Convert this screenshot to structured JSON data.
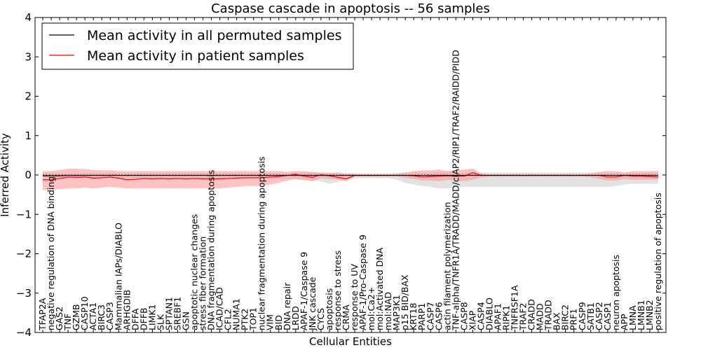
{
  "chart_data": {
    "type": "line",
    "title": "Caspase cascade in apoptosis -- 56 samples",
    "xlabel": "Cellular Entities",
    "ylabel": "Inferred Activity",
    "ylim": [
      -4,
      4
    ],
    "yticks": [
      "−4",
      "−3",
      "−2",
      "−1",
      "0",
      "1",
      "2",
      "3",
      "4"
    ],
    "grid": false,
    "legend_position": "top-left",
    "categories": [
      "TFAP2A",
      "negative regulation of DNA binding",
      "GAS2",
      "TNF",
      "GZMB",
      "CASP10",
      "ACTA1",
      "BIRC3",
      "CASP3",
      "Mammalian IAPs/DIABLO",
      "ARHGDIB",
      "DFFA",
      "DFFB",
      "LIMK1",
      "SLK",
      "SPTAN1",
      "SREBF1",
      "GSN",
      "apoptotic nuclear changes",
      "stress fiber formation",
      "DNA fragmentation during apoptosis",
      "ICAD/CAD",
      "CFL2",
      "NUMA1",
      "PTK2",
      "TOP1",
      "nuclear fragmentation during apoptosis",
      "VIM",
      "BID",
      "DNA repair",
      "LRDD",
      "APAF-1/Caspase 9",
      "JNK cascade",
      "CYCS",
      "apoptosis",
      "response to stress",
      "CRMA",
      "response to UV",
      "APAF-1/Pro-Caspase 9",
      "mol:Ca2+",
      "mol:Activated DNA",
      "mol:NAD",
      "MAP3K1",
      "p15 BID/BAX",
      "KRT18",
      "PARP1",
      "CASP7",
      "CASP6",
      "actin filament polymerization",
      "TNF-alpha/TNFR1A/TRADD/MADD/cIAP2/RIP1/TRAF2/RAIDD/PIDD",
      "CASP8",
      "XIAP",
      "CASP4",
      "DIABLO",
      "APAF1",
      "RIPK1",
      "TNFRSF1A",
      "TRAF2",
      "CRADD",
      "MADD",
      "TRADD",
      "BAX",
      "BIRC2",
      "PRF1",
      "CASP9",
      "SATB1",
      "CASP2",
      "CASP1",
      "neuron apoptosis",
      "APP",
      "LMNA",
      "LMNB1",
      "LMNB2",
      "positive regulation of apoptosis"
    ],
    "series": [
      {
        "name": "Mean activity in all permuted samples",
        "color": "#000000",
        "values": [
          -0.02,
          -0.02,
          -0.02,
          -0.01,
          -0.01,
          -0.01,
          -0.01,
          -0.01,
          -0.01,
          -0.01,
          -0.01,
          -0.01,
          -0.01,
          -0.01,
          -0.01,
          -0.01,
          -0.01,
          -0.01,
          -0.01,
          -0.01,
          -0.01,
          -0.01,
          -0.01,
          -0.01,
          -0.01,
          -0.01,
          -0.01,
          -0.01,
          -0.01,
          -0.01,
          -0.01,
          -0.01,
          -0.01,
          -0.01,
          -0.01,
          -0.01,
          -0.01,
          -0.01,
          -0.01,
          -0.01,
          -0.01,
          -0.01,
          -0.01,
          -0.01,
          -0.01,
          -0.01,
          -0.01,
          -0.01,
          -0.01,
          -0.01,
          -0.01,
          -0.01,
          -0.01,
          -0.01,
          -0.01,
          -0.01,
          -0.01,
          -0.01,
          -0.01,
          -0.01,
          -0.01,
          -0.01,
          -0.01,
          -0.01,
          -0.01,
          -0.01,
          -0.01,
          -0.01,
          -0.01,
          -0.01,
          -0.01,
          -0.01,
          -0.01,
          -0.01
        ],
        "band_upper": [
          0.05,
          0.05,
          0.05,
          0.05,
          0.05,
          0.05,
          0.05,
          0.05,
          0.05,
          0.05,
          0.05,
          0.05,
          0.05,
          0.05,
          0.05,
          0.05,
          0.05,
          0.05,
          0.05,
          0.05,
          0.05,
          0.05,
          0.05,
          0.05,
          0.05,
          0.05,
          0.05,
          0.05,
          0.05,
          0.05,
          0.06,
          0.06,
          0.06,
          0.06,
          0.06,
          0.06,
          0.04,
          0.04,
          0.04,
          0.04,
          0.04,
          0.04,
          0.05,
          0.06,
          0.06,
          0.06,
          0.06,
          0.08,
          0.08,
          0.08,
          0.06,
          0.06,
          0.06,
          0.06,
          0.06,
          0.06,
          0.06,
          0.06,
          0.06,
          0.06,
          0.06,
          0.06,
          0.06,
          0.06,
          0.06,
          0.06,
          0.06,
          0.06,
          0.06,
          0.06,
          0.06,
          0.06,
          0.06,
          0.06
        ],
        "band_lower": [
          -0.08,
          -0.08,
          -0.08,
          -0.08,
          -0.08,
          -0.08,
          -0.08,
          -0.08,
          -0.08,
          -0.08,
          -0.08,
          -0.08,
          -0.08,
          -0.08,
          -0.08,
          -0.08,
          -0.08,
          -0.08,
          -0.08,
          -0.08,
          -0.08,
          -0.08,
          -0.08,
          -0.08,
          -0.08,
          -0.08,
          -0.08,
          -0.08,
          -0.08,
          -0.1,
          -0.12,
          -0.14,
          -0.14,
          -0.16,
          -0.22,
          -0.18,
          -0.1,
          -0.08,
          -0.08,
          -0.08,
          -0.08,
          -0.08,
          -0.12,
          -0.2,
          -0.24,
          -0.28,
          -0.3,
          -0.34,
          -0.34,
          -0.32,
          -0.3,
          -0.3,
          -0.3,
          -0.3,
          -0.3,
          -0.3,
          -0.3,
          -0.3,
          -0.3,
          -0.3,
          -0.3,
          -0.3,
          -0.3,
          -0.3,
          -0.3,
          -0.3,
          -0.3,
          -0.3,
          -0.28,
          -0.24,
          -0.22,
          -0.22,
          -0.22,
          -0.22
        ]
      },
      {
        "name": "Mean activity in patient samples",
        "color": "#ff0000",
        "values": [
          -0.12,
          -0.12,
          -0.09,
          -0.05,
          -0.06,
          -0.05,
          -0.08,
          -0.07,
          -0.05,
          -0.08,
          -0.12,
          -0.11,
          -0.09,
          -0.1,
          -0.09,
          -0.1,
          -0.09,
          -0.1,
          -0.09,
          -0.1,
          -0.1,
          -0.1,
          -0.09,
          -0.08,
          -0.07,
          -0.07,
          -0.07,
          -0.05,
          -0.04,
          -0.01,
          0.02,
          -0.03,
          -0.06,
          0.01,
          -0.02,
          -0.06,
          -0.1,
          -0.01,
          -0.01,
          -0.01,
          -0.01,
          -0.01,
          -0.01,
          -0.01,
          -0.02,
          -0.05,
          -0.04,
          -0.03,
          -0.02,
          -0.03,
          -0.03,
          0.06,
          -0.01,
          -0.01,
          -0.01,
          -0.01,
          -0.01,
          -0.01,
          -0.01,
          -0.01,
          -0.01,
          -0.01,
          -0.01,
          -0.01,
          -0.01,
          -0.01,
          -0.01,
          -0.05,
          -0.05,
          -0.01,
          -0.03,
          -0.03,
          -0.04,
          -0.05
        ],
        "band_upper": [
          0.1,
          0.1,
          0.13,
          0.16,
          0.16,
          0.15,
          0.13,
          0.12,
          0.12,
          0.1,
          0.1,
          0.1,
          0.1,
          0.1,
          0.1,
          0.1,
          0.1,
          0.1,
          0.1,
          0.1,
          0.1,
          0.1,
          0.1,
          0.1,
          0.1,
          0.1,
          0.1,
          0.1,
          0.1,
          0.08,
          0.1,
          0.1,
          0.08,
          0.06,
          0.05,
          0.06,
          0.04,
          0.03,
          0.02,
          0.02,
          0.02,
          0.02,
          0.03,
          0.06,
          0.1,
          0.12,
          0.12,
          0.14,
          0.1,
          0.12,
          0.14,
          0.16,
          0.04,
          0.02,
          0.02,
          0.02,
          0.02,
          0.02,
          0.02,
          0.02,
          0.02,
          0.02,
          0.02,
          0.02,
          0.02,
          0.04,
          0.08,
          0.1,
          0.1,
          0.06,
          0.1,
          0.1,
          0.1,
          0.1
        ],
        "band_lower": [
          -0.38,
          -0.38,
          -0.36,
          -0.34,
          -0.34,
          -0.32,
          -0.34,
          -0.32,
          -0.3,
          -0.32,
          -0.34,
          -0.34,
          -0.34,
          -0.34,
          -0.34,
          -0.34,
          -0.34,
          -0.34,
          -0.34,
          -0.34,
          -0.34,
          -0.34,
          -0.32,
          -0.3,
          -0.28,
          -0.28,
          -0.28,
          -0.24,
          -0.2,
          -0.14,
          -0.1,
          -0.12,
          -0.16,
          -0.08,
          -0.1,
          -0.12,
          -0.16,
          -0.04,
          -0.04,
          -0.04,
          -0.04,
          -0.04,
          -0.04,
          -0.08,
          -0.1,
          -0.14,
          -0.14,
          -0.16,
          -0.12,
          -0.14,
          -0.16,
          -0.12,
          -0.06,
          -0.04,
          -0.04,
          -0.04,
          -0.04,
          -0.04,
          -0.04,
          -0.04,
          -0.04,
          -0.04,
          -0.04,
          -0.04,
          -0.04,
          -0.06,
          -0.1,
          -0.14,
          -0.14,
          -0.1,
          -0.12,
          -0.12,
          -0.12,
          -0.12
        ]
      }
    ],
    "reference_line": {
      "y": 0,
      "style": "dotted"
    },
    "colors": {
      "permuted_band": "#d8d8d8",
      "patient_band": "#ff9999"
    }
  }
}
